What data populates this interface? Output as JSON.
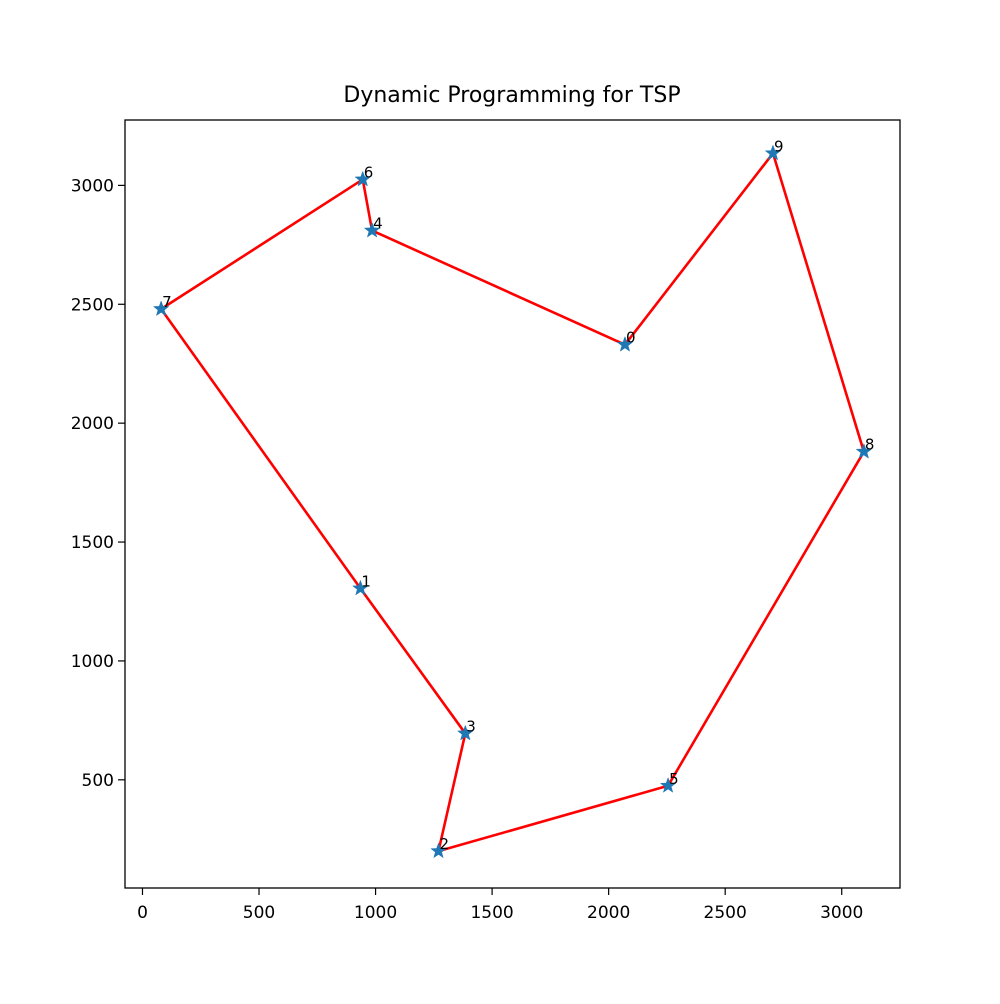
{
  "chart_data": {
    "type": "scatter",
    "title": "Dynamic Programming for TSP",
    "xlabel": "",
    "ylabel": "",
    "xlim": [
      -75,
      3250
    ],
    "ylim": [
      45,
      3275
    ],
    "xticks": [
      0,
      500,
      1000,
      1500,
      2000,
      2500,
      3000
    ],
    "yticks": [
      500,
      1000,
      1500,
      2000,
      2500,
      3000
    ],
    "grid": false,
    "points": [
      {
        "label": "0",
        "x": 2070,
        "y": 2330
      },
      {
        "label": "1",
        "x": 935,
        "y": 1305
      },
      {
        "label": "2",
        "x": 1270,
        "y": 200
      },
      {
        "label": "3",
        "x": 1385,
        "y": 695
      },
      {
        "label": "4",
        "x": 985,
        "y": 2810
      },
      {
        "label": "5",
        "x": 2255,
        "y": 475
      },
      {
        "label": "6",
        "x": 945,
        "y": 3025
      },
      {
        "label": "7",
        "x": 80,
        "y": 2480
      },
      {
        "label": "8",
        "x": 3095,
        "y": 1880
      },
      {
        "label": "9",
        "x": 2705,
        "y": 3135
      }
    ],
    "tour": [
      0,
      4,
      6,
      7,
      1,
      3,
      2,
      5,
      8,
      9,
      0
    ],
    "marker": "star",
    "marker_color": "#1f77b4",
    "line_color": "#ff0000"
  }
}
